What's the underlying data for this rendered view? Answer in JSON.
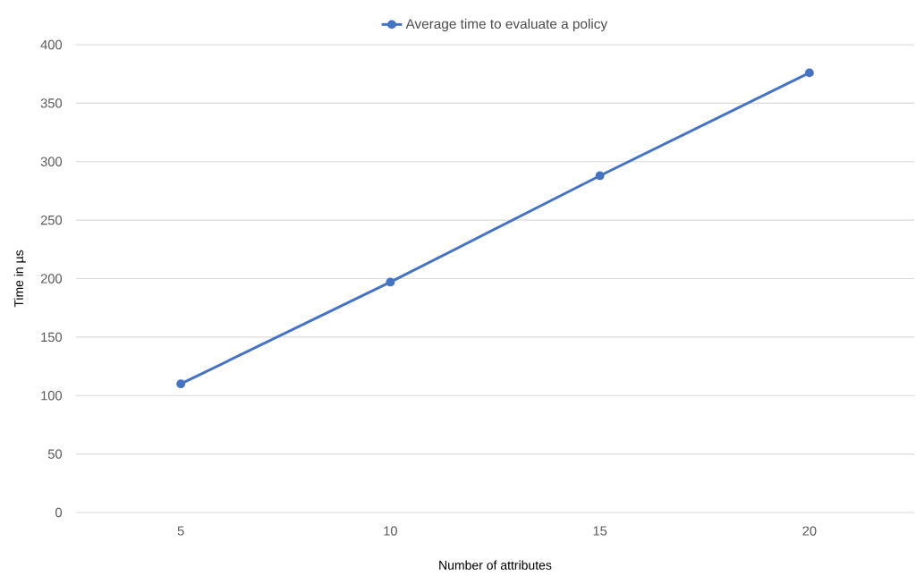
{
  "chart_data": {
    "type": "line",
    "xlabel": "Number of attributes",
    "ylabel": "Time in µs",
    "categories": [
      "5",
      "10",
      "15",
      "20"
    ],
    "series": [
      {
        "name": "Average time to evaluate a policy",
        "color": "#4472c4",
        "values": [
          110,
          197,
          288,
          376
        ]
      }
    ],
    "ylim": [
      0,
      400
    ],
    "yticks": [
      0,
      50,
      100,
      150,
      200,
      250,
      300,
      350,
      400
    ],
    "grid": "y",
    "legend": "top",
    "marker": "circle",
    "line_style": "solid"
  }
}
